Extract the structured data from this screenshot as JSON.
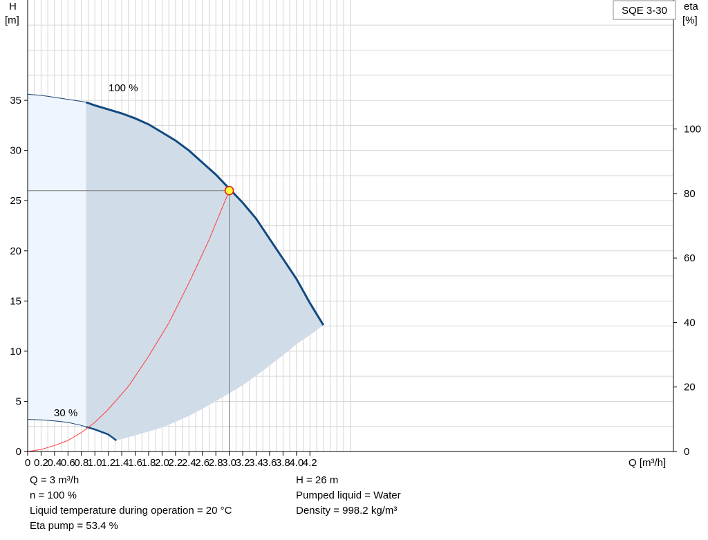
{
  "chart_data": {
    "type": "line",
    "title_box": "SQE 3-30",
    "x_label": "Q [m³/h]",
    "y_left_label": [
      "H",
      "[m]"
    ],
    "y_right_label": [
      "eta",
      "[%]"
    ],
    "x_ticks": [
      "0",
      "0.2",
      "0.4",
      "0.6",
      "0.8",
      "1.0",
      "1.2",
      "1.4",
      "1.6",
      "1.8",
      "2.0",
      "2.2",
      "2.4",
      "2.6",
      "2.8",
      "3.0",
      "3.2",
      "3.4",
      "3.6",
      "3.8",
      "4.0",
      "4.2"
    ],
    "x_range": [
      0,
      4.8
    ],
    "y_left_ticks": [
      0,
      5,
      10,
      15,
      20,
      25,
      30,
      35
    ],
    "y_left_range": [
      0,
      45
    ],
    "y_right_ticks": [
      0,
      20,
      40,
      60,
      80,
      100
    ],
    "y_right_range": [
      0,
      140
    ],
    "grid": true,
    "curve_labels": {
      "full": "100 %",
      "min": "30 %"
    },
    "series": [
      {
        "key": "h100",
        "x": [
          0,
          0.2,
          0.4,
          0.6,
          0.8,
          0.87,
          1.0,
          1.2,
          1.4,
          1.6,
          1.8,
          2.0,
          2.2,
          2.4,
          2.6,
          2.8,
          3.0,
          3.2,
          3.4,
          3.6,
          3.8,
          4.0,
          4.2,
          4.4
        ],
        "y": [
          35.6,
          35.5,
          35.3,
          35.1,
          34.9,
          34.8,
          34.5,
          34.1,
          33.7,
          33.2,
          32.6,
          31.8,
          31.0,
          30.0,
          28.8,
          27.6,
          26.2,
          24.8,
          23.2,
          21.2,
          19.2,
          17.2,
          14.8,
          12.6
        ]
      },
      {
        "key": "h30",
        "x": [
          0,
          0.2,
          0.4,
          0.6,
          0.8,
          0.87,
          1.0,
          1.2,
          1.32
        ],
        "y": [
          3.2,
          3.15,
          3.05,
          2.9,
          2.6,
          2.45,
          2.2,
          1.7,
          1.1
        ]
      },
      {
        "key": "sys",
        "x": [
          0,
          0.2,
          0.4,
          0.6,
          0.8,
          1.0,
          1.2,
          1.5,
          1.8,
          2.1,
          2.4,
          2.7,
          3.0
        ],
        "y": [
          0,
          0.2,
          0.6,
          1.1,
          1.9,
          2.9,
          4.2,
          6.5,
          9.5,
          12.8,
          16.8,
          21.1,
          26.0
        ]
      },
      {
        "key": "lower",
        "x": [
          1.32,
          1.6,
          1.8,
          2.0,
          2.2,
          2.4,
          2.6,
          2.8,
          3.0,
          3.2,
          3.4,
          3.6,
          3.8,
          4.0,
          4.2,
          4.4
        ],
        "y": [
          1.1,
          1.6,
          2.0,
          2.4,
          2.95,
          3.55,
          4.25,
          5.0,
          5.8,
          6.6,
          7.55,
          8.55,
          9.6,
          10.7,
          11.6,
          12.6
        ]
      }
    ],
    "min_flow_boundary": 0.87,
    "operating_point": {
      "x": 3.0,
      "y": 26.0
    }
  },
  "info_left": [
    "Q = 3 m³/h",
    "n = 100 %",
    "Liquid temperature during operation = 20 °C",
    "Eta pump = 53.4 %"
  ],
  "info_right": [
    "H = 26 m",
    "Pumped liquid = Water",
    "Density = 998.2 kg/m³"
  ]
}
